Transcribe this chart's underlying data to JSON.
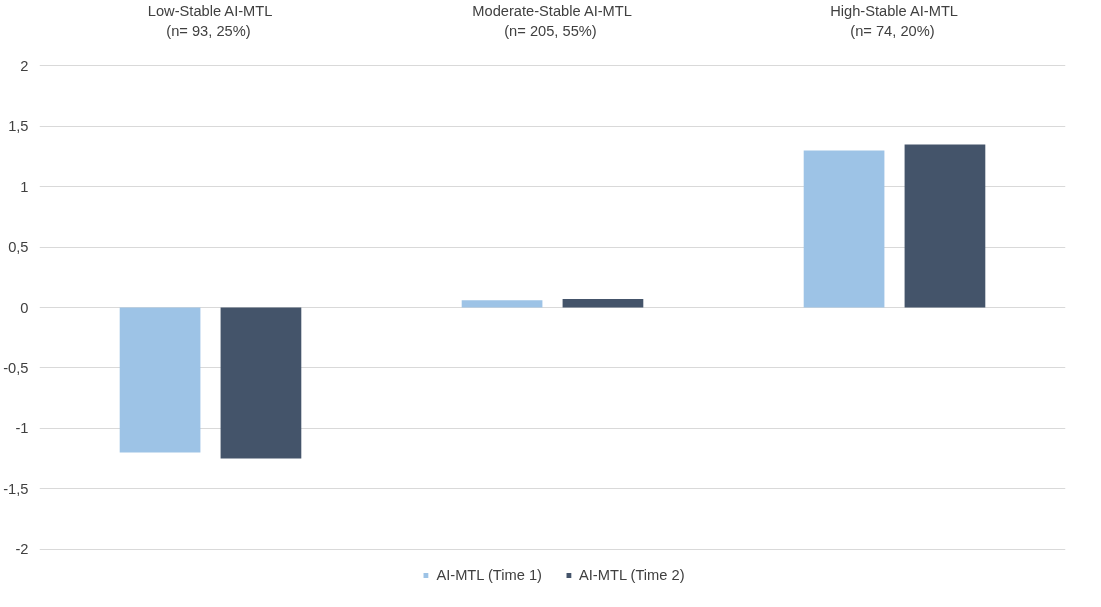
{
  "chart_data": {
    "type": "bar",
    "categories": [
      "Low-Stable AI-MTL\n(n= 93,  25%)",
      "Moderate-Stable AI-MTL\n(n= 205,  55%)",
      "High-Stable AI-MTL\n(n= 74,  20%)"
    ],
    "series": [
      {
        "name": "AI-MTL (Time 1)",
        "color": "#9dc3e6",
        "values": [
          -1.2,
          0.06,
          1.3
        ]
      },
      {
        "name": "AI-MTL (Time 2)",
        "color": "#44546a",
        "values": [
          -1.25,
          0.07,
          1.35
        ]
      }
    ],
    "ylim": [
      -2,
      2
    ],
    "yticks": [
      -2,
      {
        "value": -1.5,
        "label": "-1,5"
      },
      -1,
      {
        "value": -0.5,
        "label": "-0,5"
      },
      0,
      {
        "value": 0.5,
        "label": "0,5"
      },
      1,
      {
        "value": 1.5,
        "label": "1,5"
      },
      2
    ],
    "grid": "y",
    "legend": "bottom"
  }
}
